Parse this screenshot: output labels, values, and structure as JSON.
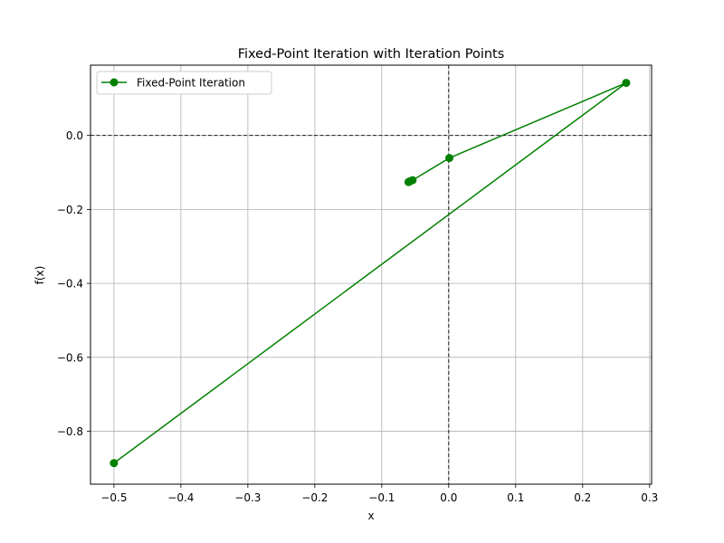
{
  "chart_data": {
    "type": "line",
    "title": "Fixed-Point Iteration with Iteration Points",
    "xlabel": "x",
    "ylabel": "f(x)",
    "xlim": [
      -0.535,
      0.303
    ],
    "ylim": [
      -0.943,
      0.19
    ],
    "xticks": [
      -0.5,
      -0.4,
      -0.3,
      -0.2,
      -0.1,
      0.0,
      0.1,
      0.2,
      0.3
    ],
    "xtick_labels": [
      "−0.5",
      "−0.4",
      "−0.3",
      "−0.2",
      "−0.1",
      "0.0",
      "0.1",
      "0.2",
      "0.3"
    ],
    "yticks": [
      -0.8,
      -0.6,
      -0.4,
      -0.2,
      0.0
    ],
    "ytick_labels": [
      "−0.8",
      "−0.6",
      "−0.4",
      "−0.2",
      "0.0"
    ],
    "grid": true,
    "reference_lines": {
      "x": 0,
      "y": 0
    },
    "legend_position": "top-left",
    "series": [
      {
        "name": "Fixed-Point Iteration",
        "color": "#008000",
        "marker": "circle",
        "x": [
          -0.5,
          0.265,
          0.001,
          -0.054,
          -0.058,
          -0.059,
          -0.06
        ],
        "y": [
          -0.886,
          0.142,
          -0.061,
          -0.121,
          -0.124,
          -0.125,
          -0.126
        ]
      }
    ]
  }
}
